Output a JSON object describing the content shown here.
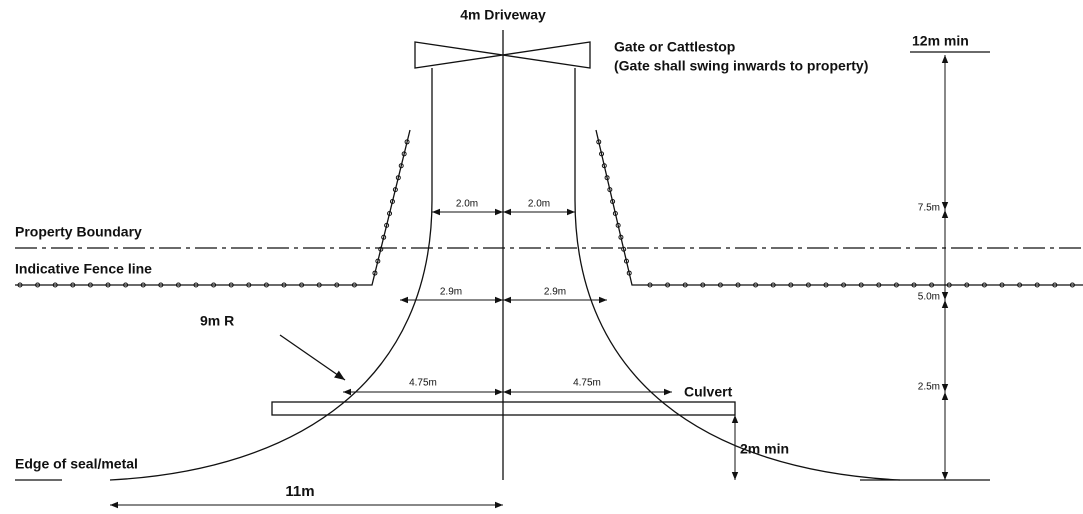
{
  "title": "4m Driveway",
  "gate": {
    "label": "Gate or Cattlestop",
    "note": "(Gate shall swing inwards to property)"
  },
  "boundaries": {
    "property": "Property Boundary",
    "fence": "Indicative Fence line",
    "edge": "Edge of seal/metal"
  },
  "widths": {
    "gate_half_left": "2.0m",
    "gate_half_right": "2.0m",
    "fence_half_left": "2.9m",
    "fence_half_right": "2.9m",
    "culvert_half_left": "4.75m",
    "culvert_half_right": "4.75m",
    "edge_half": "11m"
  },
  "depths": {
    "total": "12m min",
    "gate_to_boundary": "7.5m",
    "boundary_to_fence": "5.0m",
    "to_culvert": "2.5m",
    "culvert_cover": "2m min"
  },
  "radius": "9m R",
  "culvert": "Culvert"
}
